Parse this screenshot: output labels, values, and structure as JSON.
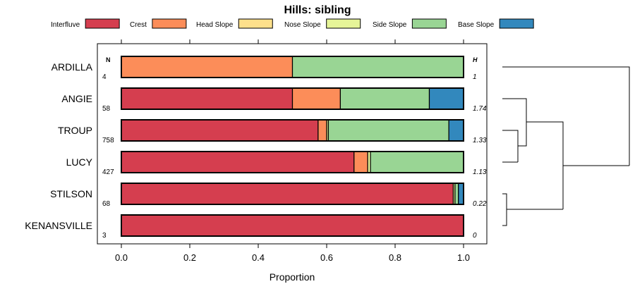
{
  "chart_data": {
    "type": "bar",
    "orientation": "horizontal",
    "stacked": true,
    "title": "Hills: sibling",
    "xlabel": "Proportion",
    "ylabel": "",
    "xlim": [
      0,
      1
    ],
    "x_ticks": [
      "0.0",
      "0.2",
      "0.4",
      "0.6",
      "0.8",
      "1.0"
    ],
    "x_tick_values": [
      0,
      0.2,
      0.4,
      0.6,
      0.8,
      1.0
    ],
    "legend_position": "top",
    "n_header": "N",
    "h_header": "H",
    "categories": [
      "ARDILLA",
      "ANGIE",
      "TROUP",
      "LUCY",
      "STILSON",
      "KENANSVILLE"
    ],
    "n_values": [
      "4",
      "58",
      "758",
      "427",
      "68",
      "3"
    ],
    "h_values": [
      "1",
      "1.74",
      "1.33",
      "1.13",
      "0.22",
      "0"
    ],
    "series": [
      {
        "name": "Interfluve",
        "color": "#D53E4F",
        "values": [
          0,
          0.5,
          0.575,
          0.68,
          0.97,
          1.0
        ]
      },
      {
        "name": "Crest",
        "color": "#FC8D59",
        "values": [
          0.5,
          0.14,
          0.025,
          0.04,
          0,
          0
        ]
      },
      {
        "name": "Head Slope",
        "color": "#FEE08B",
        "values": [
          0,
          0,
          0,
          0,
          0,
          0
        ]
      },
      {
        "name": "Nose Slope",
        "color": "#E6F598",
        "values": [
          0,
          0,
          0.005,
          0.008,
          0.005,
          0
        ]
      },
      {
        "name": "Side Slope",
        "color": "#99D594",
        "values": [
          0.5,
          0.26,
          0.352,
          0.272,
          0.01,
          0
        ]
      },
      {
        "name": "Base Slope",
        "color": "#3288BD",
        "values": [
          0,
          0.1,
          0.043,
          0,
          0.015,
          0
        ]
      }
    ],
    "dendrogram": "right-side hierarchical clustering of rows"
  }
}
